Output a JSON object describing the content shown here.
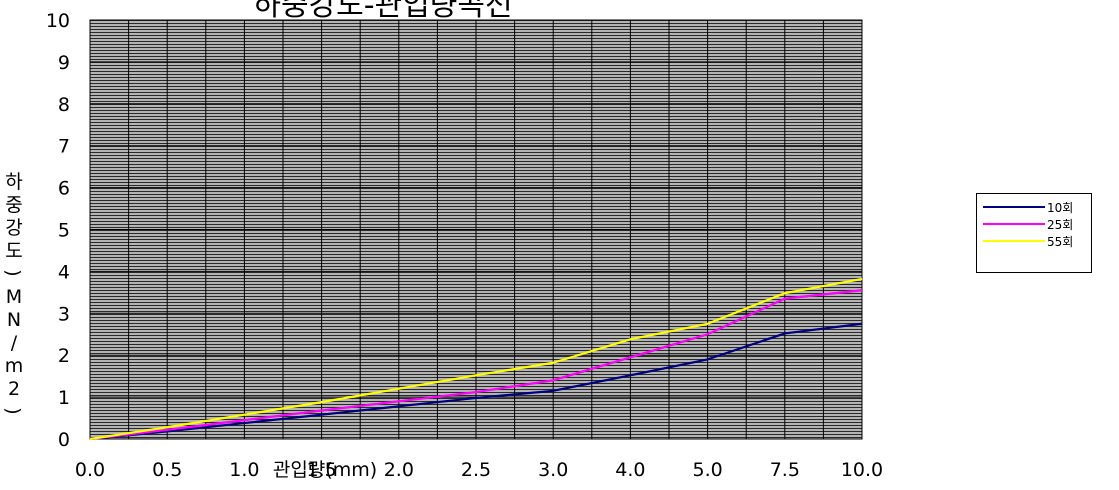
{
  "chart_data": {
    "type": "line",
    "title": "하중강도-관입량곡선",
    "xlabel": "관입량(mm)",
    "ylabel": "하중강도)MN/m2)",
    "categories": [
      "0.0",
      "0.5",
      "1.0",
      "1.5",
      "2.0",
      "2.5",
      "3.0",
      "4.0",
      "5.0",
      "7.5",
      "10.0"
    ],
    "ylim": [
      0,
      10
    ],
    "yticks": [
      0,
      1,
      2,
      3,
      4,
      5,
      6,
      7,
      8,
      9,
      10
    ],
    "grid": true,
    "legend_position": "right",
    "plot_background": "#b0b0b0",
    "series": [
      {
        "name": "10회",
        "color": "#000080",
        "values": [
          0,
          0.18,
          0.38,
          0.58,
          0.78,
          0.98,
          1.15,
          1.52,
          1.9,
          2.52,
          2.75
        ]
      },
      {
        "name": "25회",
        "color": "#ff00ff",
        "values": [
          0,
          0.22,
          0.45,
          0.68,
          0.9,
          1.12,
          1.4,
          1.95,
          2.5,
          3.35,
          3.55
        ]
      },
      {
        "name": "55회",
        "color": "#ffff00",
        "values": [
          0,
          0.28,
          0.58,
          0.88,
          1.2,
          1.52,
          1.82,
          2.38,
          2.75,
          3.48,
          3.82
        ]
      }
    ]
  }
}
